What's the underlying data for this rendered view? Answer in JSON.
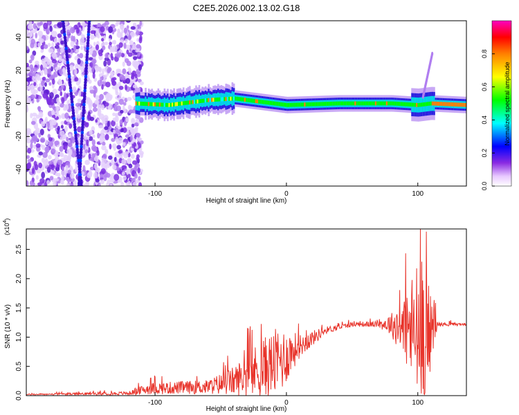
{
  "title": "C2E5.2026.002.13.02.G18",
  "chart_data": [
    {
      "type": "heatmap",
      "name": "spectrogram",
      "xlabel": "Height of straight line (km)",
      "ylabel": "Frequency (Hz)",
      "xlim": [
        -198,
        137
      ],
      "ylim": [
        -50,
        50
      ],
      "xticks": [
        -100,
        0,
        100
      ],
      "xtick_labels": [
        "-100",
        "0",
        "100"
      ],
      "yticks": [
        -40,
        -20,
        0,
        20,
        40
      ],
      "ytick_labels": [
        "-40",
        "-20",
        "0",
        "20",
        "40"
      ],
      "colorbar": {
        "label": "Normalized spectral amplitude",
        "range": [
          0,
          1
        ],
        "ticks": [
          0.0,
          0.2,
          0.4,
          0.6,
          0.8
        ],
        "tick_labels": [
          "0.0",
          "0.2",
          "0.4",
          "0.6",
          "0.8"
        ]
      },
      "ridge": [
        {
          "x": -115,
          "f": 0
        },
        {
          "x": -90,
          "f": -1
        },
        {
          "x": -60,
          "f": 2
        },
        {
          "x": -40,
          "f": 3
        },
        {
          "x": -20,
          "f": 1
        },
        {
          "x": 0,
          "f": -1
        },
        {
          "x": 40,
          "f": 0
        },
        {
          "x": 80,
          "f": 0
        },
        {
          "x": 100,
          "f": -1
        },
        {
          "x": 110,
          "f": 0
        },
        {
          "x": 137,
          "f": -1
        }
      ],
      "noisy_region_end_x": -115
    },
    {
      "type": "line",
      "name": "snr",
      "xlabel": "Height of straight line (km)",
      "ylabel": "SNR (10 * v/v)",
      "y_multiplier": "(x10",
      "y_multiplier_exp": "4",
      "y_multiplier_close": ")",
      "xlim": [
        -198,
        137
      ],
      "ylim": [
        0,
        2.85
      ],
      "xticks": [
        -100,
        0,
        100
      ],
      "xtick_labels": [
        "-100",
        "0",
        "100"
      ],
      "yticks": [
        0.0,
        0.5,
        1.0,
        1.5,
        2.0,
        2.5
      ],
      "ytick_labels": [
        "0.0",
        "0.5",
        "1.0",
        "1.5",
        "2.0",
        "2.5"
      ],
      "color": "#e8332a",
      "envelope": [
        {
          "x": -198,
          "base": 0.02,
          "amp": 0.01
        },
        {
          "x": -120,
          "base": 0.04,
          "amp": 0.03
        },
        {
          "x": -105,
          "base": 0.12,
          "amp": 0.1
        },
        {
          "x": -60,
          "base": 0.15,
          "amp": 0.12
        },
        {
          "x": -40,
          "base": 0.25,
          "amp": 0.25
        },
        {
          "x": -20,
          "base": 0.45,
          "amp": 0.5
        },
        {
          "x": -5,
          "base": 0.6,
          "amp": 0.6
        },
        {
          "x": 10,
          "base": 0.85,
          "amp": 0.2
        },
        {
          "x": 30,
          "base": 1.12,
          "amp": 0.06
        },
        {
          "x": 50,
          "base": 1.22,
          "amp": 0.04
        },
        {
          "x": 70,
          "base": 1.22,
          "amp": 0.05
        },
        {
          "x": 80,
          "base": 1.22,
          "amp": 0.2
        },
        {
          "x": 92,
          "base": 1.15,
          "amp": 0.7
        },
        {
          "x": 103,
          "base": 1.0,
          "amp": 1.6
        },
        {
          "x": 110,
          "base": 1.1,
          "amp": 0.6
        },
        {
          "x": 115,
          "base": 1.22,
          "amp": 0.04
        },
        {
          "x": 137,
          "base": 1.22,
          "amp": 0.02
        }
      ]
    }
  ]
}
